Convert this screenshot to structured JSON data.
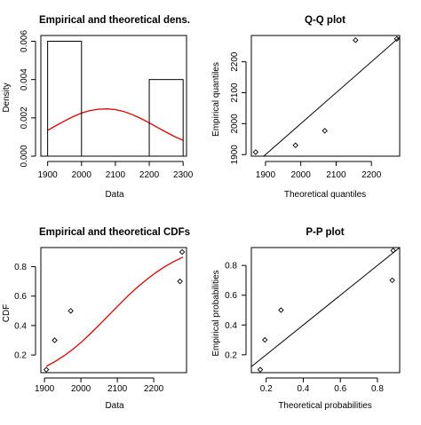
{
  "chart_data": [
    {
      "type": "histogram+density",
      "title": "Empirical and theoretical dens.",
      "xlabel": "Data",
      "ylabel": "Density",
      "xlim": [
        1880,
        2310
      ],
      "ylim": [
        0,
        0.0063
      ],
      "x_ticks": [
        "1900",
        "2000",
        "2100",
        "2200",
        "2300"
      ],
      "y_ticks": [
        "0.000",
        "0.002",
        "0.004",
        "0.006"
      ],
      "bins": [
        {
          "x0": 1900,
          "x1": 2000,
          "density": 0.006
        },
        {
          "x0": 2200,
          "x1": 2300,
          "density": 0.004
        }
      ],
      "density_curve": {
        "color": "#e00000",
        "x": [
          1900,
          1925,
          1950,
          1975,
          2000,
          2025,
          2050,
          2075,
          2100,
          2125,
          2150,
          2175,
          2200,
          2225,
          2250,
          2275,
          2300
        ],
        "y": [
          0.00135,
          0.0016,
          0.00184,
          0.00206,
          0.00225,
          0.00238,
          0.00245,
          0.00247,
          0.00243,
          0.00233,
          0.00217,
          0.00197,
          0.00174,
          0.00149,
          0.00125,
          0.00102,
          0.00083
        ]
      }
    },
    {
      "type": "scatter",
      "title": "Q-Q plot",
      "xlabel": "Theoretical quantiles",
      "ylabel": "Empirical quantiles",
      "xlim": [
        1860,
        2280
      ],
      "ylim": [
        1895,
        2285
      ],
      "x_ticks": [
        "1900",
        "2000",
        "2100",
        "2200"
      ],
      "y_ticks": [
        "1900",
        "2000",
        "2100",
        "2200"
      ],
      "points": {
        "x": [
          1872,
          1985,
          2068,
          2155,
          2272
        ],
        "y": [
          1908,
          1930,
          1977,
          2270,
          2274
        ]
      },
      "reference_line": {
        "x": [
          1860,
          2280
        ],
        "y": [
          1860,
          2280
        ]
      }
    },
    {
      "type": "scatter+cdf",
      "title": "Empirical and theoretical CDFs",
      "xlabel": "Data",
      "ylabel": "CDF",
      "xlim": [
        1890,
        2290
      ],
      "ylim": [
        0.08,
        0.93
      ],
      "x_ticks": [
        "1900",
        "2000",
        "2100",
        "2200"
      ],
      "y_ticks": [
        "0.2",
        "0.4",
        "0.6",
        "0.8"
      ],
      "points": {
        "x": [
          1905,
          1928,
          1972,
          2272,
          2278
        ],
        "y": [
          0.1,
          0.3,
          0.5,
          0.7,
          0.9
        ]
      },
      "cdf_curve": {
        "color": "#e00000",
        "x": [
          1905,
          1930,
          1955,
          1980,
          2005,
          2030,
          2055,
          2080,
          2105,
          2130,
          2155,
          2180,
          2205,
          2230,
          2255,
          2280
        ],
        "y": [
          0.123,
          0.157,
          0.197,
          0.243,
          0.296,
          0.354,
          0.416,
          0.479,
          0.542,
          0.603,
          0.66,
          0.712,
          0.759,
          0.8,
          0.835,
          0.865
        ]
      }
    },
    {
      "type": "scatter",
      "title": "P-P plot",
      "xlabel": "Theoretical probabilities",
      "ylabel": "Empirical probabilities",
      "xlim": [
        0.12,
        0.92
      ],
      "ylim": [
        0.08,
        0.92
      ],
      "x_ticks": [
        "0.2",
        "0.4",
        "0.6",
        "0.8"
      ],
      "y_ticks": [
        "0.2",
        "0.4",
        "0.6",
        "0.8"
      ],
      "points": {
        "x": [
          0.168,
          0.193,
          0.28,
          0.88,
          0.885
        ],
        "y": [
          0.1,
          0.3,
          0.5,
          0.7,
          0.9
        ]
      },
      "reference_line": {
        "x": [
          0.12,
          0.92
        ],
        "y": [
          0.12,
          0.92
        ]
      }
    }
  ]
}
